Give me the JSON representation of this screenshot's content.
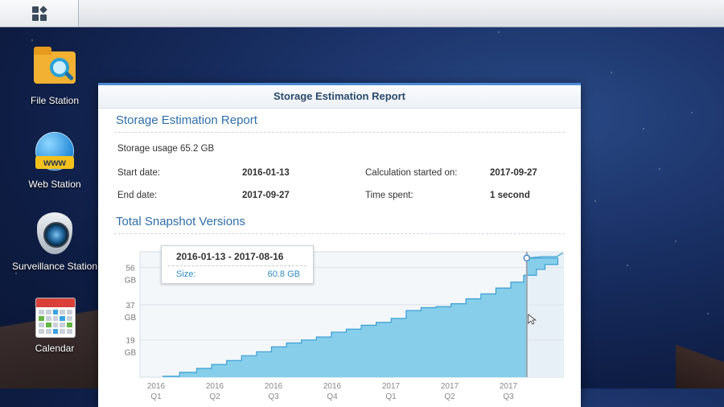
{
  "desktop": {
    "icons": [
      {
        "label": "File Station",
        "icon": "file-station-icon"
      },
      {
        "label": "Web Station",
        "icon": "web-station-icon",
        "badge": "www"
      },
      {
        "label": "Surveillance Station",
        "icon": "surveillance-station-icon"
      },
      {
        "label": "Calendar",
        "icon": "calendar-icon"
      }
    ]
  },
  "window": {
    "title": "Storage Estimation Report",
    "report_heading": "Storage Estimation Report",
    "storage_usage": "Storage usage 65.2 GB",
    "start_date_label": "Start date:",
    "start_date": "2016-01-13",
    "end_date_label": "End date:",
    "end_date": "2017-09-27",
    "calc_started_label": "Calculation started on:",
    "calc_started": "2017-09-27",
    "time_spent_label": "Time spent:",
    "time_spent": "1 second",
    "chart_heading": "Total Snapshot Versions"
  },
  "tooltip": {
    "range": "2016-01-13 - 2017-08-16",
    "size_label": "Size:",
    "size_value": "60.8 GB"
  },
  "chart_data": {
    "type": "area",
    "title": "Total Snapshot Versions",
    "x_ticks": [
      {
        "year": "2016",
        "q": "Q1"
      },
      {
        "year": "2016",
        "q": "Q2"
      },
      {
        "year": "2016",
        "q": "Q3"
      },
      {
        "year": "2016",
        "q": "Q4"
      },
      {
        "year": "2017",
        "q": "Q1"
      },
      {
        "year": "2017",
        "q": "Q2"
      },
      {
        "year": "2017",
        "q": "Q3"
      }
    ],
    "y_ticks": [
      {
        "value": 19,
        "unit": "GB"
      },
      {
        "value": 37,
        "unit": "GB"
      },
      {
        "value": 56,
        "unit": "GB"
      }
    ],
    "ylim": [
      0,
      64
    ],
    "x_months": [
      0,
      0.8,
      1.6,
      2.3,
      3.0,
      3.7,
      4.4,
      5.1,
      5.8,
      6.5,
      7.2,
      7.9,
      8.6,
      9.3,
      10.0,
      10.7,
      11.4,
      12.1,
      12.8,
      13.5,
      14.2,
      14.9,
      15.6,
      16.3,
      16.9,
      17.5,
      17.9,
      18.5
    ],
    "values": [
      0.5,
      2.5,
      4.5,
      6.5,
      8.5,
      11,
      13,
      15.5,
      17.5,
      19,
      20.5,
      23,
      24.5,
      26.5,
      28,
      30,
      34,
      35.5,
      36,
      37.5,
      40,
      42.5,
      45.5,
      48.5,
      52,
      55,
      57.5,
      60.8
    ],
    "future_values": [
      61.5,
      63.5
    ],
    "highlight": {
      "x_month": 18.1,
      "value": 60.8
    }
  },
  "colors": {
    "area_fill": "#87ceea",
    "area_stroke": "#3a9fd4",
    "future_fill": "#e7f0f6",
    "marker": "#4a88c8"
  }
}
